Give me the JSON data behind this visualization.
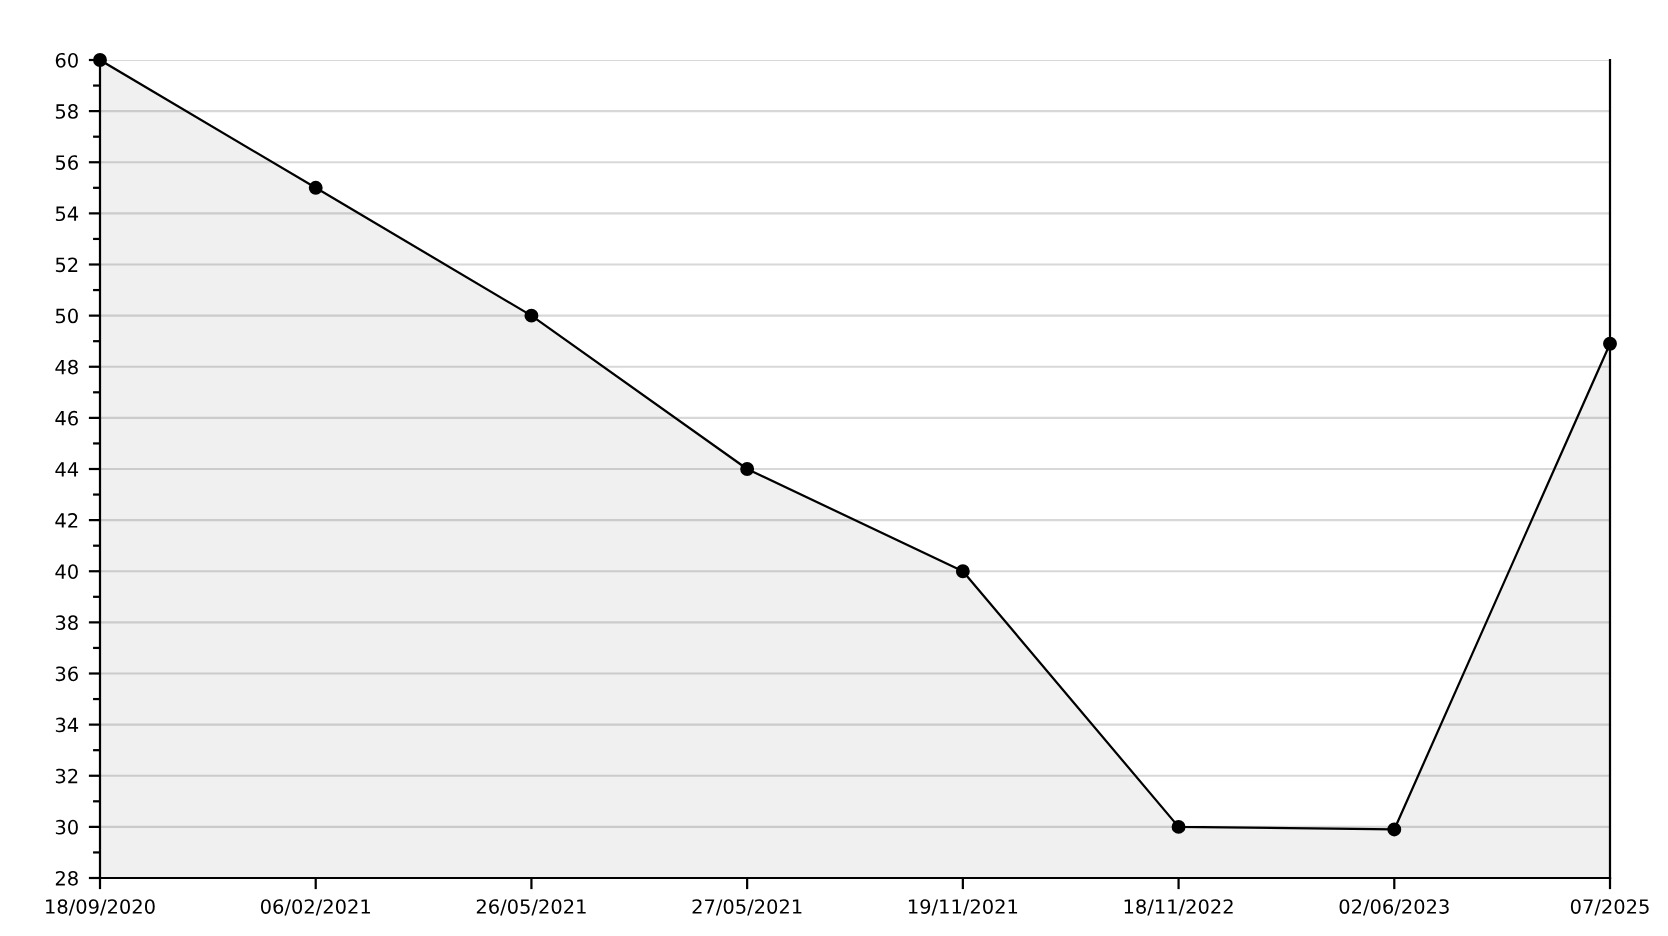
{
  "chart_data": {
    "type": "area",
    "categories": [
      "18/09/2020",
      "06/02/2021",
      "26/05/2021",
      "27/05/2021",
      "19/11/2021",
      "18/11/2022",
      "02/06/2023",
      "07/2025"
    ],
    "series": [
      {
        "color": "#000000",
        "values": [
          60,
          55,
          50,
          44,
          40,
          30,
          29.9,
          48.9
        ]
      }
    ],
    "ylim": [
      28,
      60
    ],
    "yticks": [
      28,
      {
        "value": 29,
        "label": null
      },
      30,
      {
        "value": 31,
        "label": null
      },
      32,
      {
        "value": 33,
        "label": null
      },
      34,
      {
        "value": 35,
        "label": null
      },
      36,
      {
        "value": 37,
        "label": null
      },
      38,
      {
        "value": 39,
        "label": null
      },
      40,
      {
        "value": 41,
        "label": null
      },
      42,
      {
        "value": 43,
        "label": null
      },
      44,
      {
        "value": 45,
        "label": null
      },
      46,
      {
        "value": 47,
        "label": null
      },
      48,
      {
        "value": 49,
        "label": null
      },
      50,
      {
        "value": 51,
        "label": null
      },
      52,
      {
        "value": 53,
        "label": null
      },
      54,
      {
        "value": 55,
        "label": null
      },
      56,
      {
        "value": 57,
        "label": null
      },
      58,
      {
        "value": 59,
        "label": null
      },
      60
    ],
    "grid": "y",
    "marker": "circle",
    "line_style": "solid",
    "legend": false
  }
}
